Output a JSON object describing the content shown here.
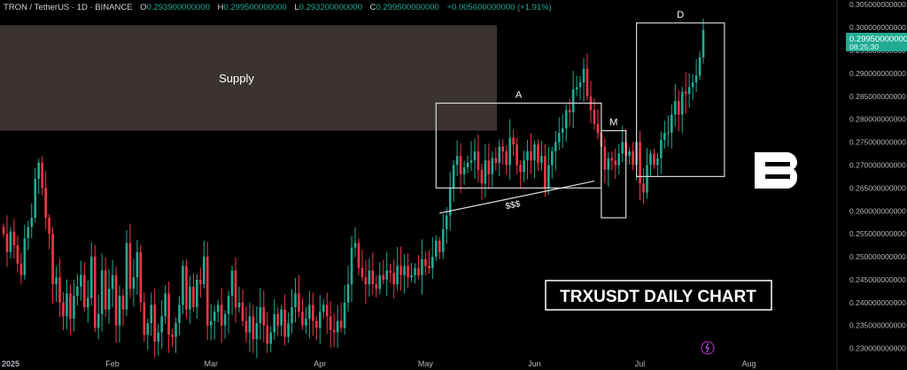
{
  "header": {
    "symbol": "TRON / TetherUS · 1D · BINANCE",
    "o_label": "O",
    "o_value": "0.293900000000",
    "h_label": "H",
    "h_value": "0.299500000000",
    "l_label": "L",
    "l_value": "0.293200000000",
    "c_label": "C",
    "c_value": "0.299500000000",
    "change": "+0.005600000000 (+1.91%)"
  },
  "price_badge": {
    "price": "0.299500000000",
    "countdown": "08:25:30"
  },
  "colors": {
    "up": "#22ab94",
    "down": "#f23645",
    "badge": "#22ab94",
    "supply": "#3b3331",
    "text": "#d1d4dc"
  },
  "logo": {
    "name": "brand-b-logo"
  },
  "chart_data": {
    "type": "candlestick",
    "title": "TRXUSDT DAILY CHART",
    "ylim": [
      0.228,
      0.306
    ],
    "y_ticks": [
      "0.305000000000",
      "0.300000000000",
      "0.295000000000",
      "0.290000000000",
      "0.285000000000",
      "0.280000000000",
      "0.275000000000",
      "0.270000000000",
      "0.265000000000",
      "0.260000000000",
      "0.255000000000",
      "0.250000000000",
      "0.245000000000",
      "0.240000000000",
      "0.235000000000",
      "0.230000000000"
    ],
    "x_ticks": [
      "2025",
      "Feb",
      "Mar",
      "Apr",
      "May",
      "Jun",
      "Jul",
      "Aug"
    ],
    "annotations": {
      "supply": {
        "label": "Supply",
        "y_range": [
          0.2775,
          0.3005
        ]
      },
      "boxes": [
        {
          "label": "A",
          "x_range": [
            "May 4",
            "Jun 20"
          ],
          "y_range": [
            0.265,
            0.2835
          ]
        },
        {
          "label": "M",
          "x_range": [
            "Jun 20",
            "Jun 27"
          ],
          "y_range": [
            0.2585,
            0.2775
          ]
        },
        {
          "label": "D",
          "x_range": [
            "Jun 30",
            "Jul 25"
          ],
          "y_range": [
            0.2675,
            0.301
          ]
        }
      ],
      "trendline": {
        "label": "$$$",
        "from": [
          "May 5",
          0.2595
        ],
        "to": [
          "Jun 18",
          0.2665
        ]
      }
    },
    "candles_close": [
      0.255,
      0.251,
      0.2555,
      0.2525,
      0.2485,
      0.246,
      0.254,
      0.2565,
      0.2585,
      0.267,
      0.2705,
      0.265,
      0.2585,
      0.255,
      0.244,
      0.2455,
      0.24,
      0.237,
      0.242,
      0.2365,
      0.2415,
      0.2435,
      0.246,
      0.239,
      0.241,
      0.25,
      0.2345,
      0.2375,
      0.247,
      0.2385,
      0.243,
      0.246,
      0.235,
      0.2415,
      0.2385,
      0.253,
      0.243,
      0.2455,
      0.251,
      0.24,
      0.233,
      0.2355,
      0.2395,
      0.2315,
      0.2335,
      0.237,
      0.242,
      0.233,
      0.2325,
      0.2355,
      0.2395,
      0.248,
      0.2385,
      0.2435,
      0.239,
      0.245,
      0.244,
      0.25,
      0.235,
      0.236,
      0.238,
      0.2395,
      0.235,
      0.2375,
      0.2415,
      0.247,
      0.239,
      0.24,
      0.236,
      0.2335,
      0.237,
      0.232,
      0.2355,
      0.239,
      0.235,
      0.231,
      0.2335,
      0.2375,
      0.235,
      0.2385,
      0.2325,
      0.2355,
      0.239,
      0.242,
      0.238,
      0.235,
      0.2365,
      0.2395,
      0.236,
      0.2345,
      0.238,
      0.2395,
      0.237,
      0.234,
      0.2335,
      0.236,
      0.2345,
      0.24,
      0.244,
      0.252,
      0.253,
      0.2475,
      0.2455,
      0.244,
      0.247,
      0.244,
      0.243,
      0.246,
      0.245,
      0.247,
      0.2465,
      0.244,
      0.248,
      0.246,
      0.248,
      0.2455,
      0.246,
      0.2475,
      0.246,
      0.2495,
      0.248,
      0.2475,
      0.25,
      0.2535,
      0.251,
      0.256,
      0.259,
      0.265,
      0.27,
      0.272,
      0.268,
      0.2695,
      0.2705,
      0.271,
      0.273,
      0.269,
      0.266,
      0.271,
      0.268,
      0.2715,
      0.2705,
      0.274,
      0.273,
      0.27,
      0.276,
      0.2745,
      0.27,
      0.2685,
      0.271,
      0.273,
      0.271,
      0.2745,
      0.2705,
      0.272,
      0.265,
      0.27,
      0.273,
      0.275,
      0.277,
      0.278,
      0.282,
      0.2815,
      0.2865,
      0.287,
      0.288,
      0.291,
      0.285,
      0.282,
      0.279,
      0.277,
      0.274,
      0.269,
      0.2715,
      0.271,
      0.27,
      0.2725,
      0.275,
      0.272,
      0.273,
      0.27,
      0.275,
      0.266,
      0.264,
      0.27,
      0.2725,
      0.27,
      0.2715,
      0.2755,
      0.277,
      0.277,
      0.281,
      0.284,
      0.281,
      0.286,
      0.2855,
      0.287,
      0.288,
      0.2895,
      0.2935,
      0.2995
    ]
  }
}
